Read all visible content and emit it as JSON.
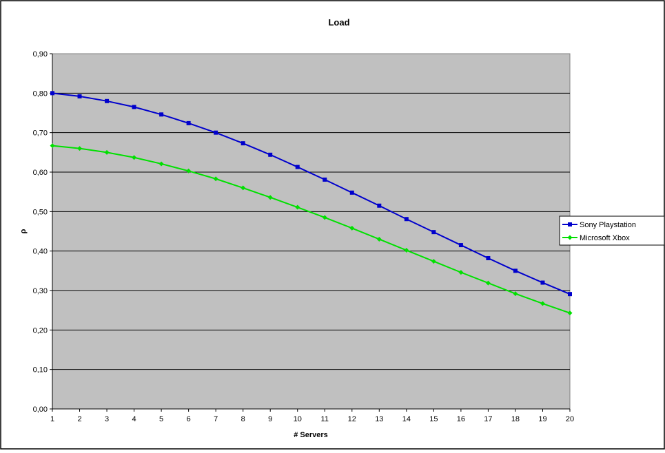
{
  "chart_data": {
    "type": "line",
    "title": "Load",
    "xlabel": "# Servers",
    "ylabel": "ρ",
    "x": [
      1,
      2,
      3,
      4,
      5,
      6,
      7,
      8,
      9,
      10,
      11,
      12,
      13,
      14,
      15,
      16,
      17,
      18,
      19,
      20
    ],
    "x_tick_labels": [
      "1",
      "2",
      "3",
      "4",
      "5",
      "6",
      "7",
      "8",
      "9",
      "10",
      "11",
      "12",
      "13",
      "14",
      "15",
      "16",
      "17",
      "18",
      "19",
      "20"
    ],
    "ylim": [
      0,
      0.9
    ],
    "y_ticks": [
      0,
      0.1,
      0.2,
      0.3,
      0.4,
      0.5,
      0.6,
      0.7,
      0.8,
      0.9
    ],
    "y_tick_labels": [
      "0,00",
      "0,10",
      "0,20",
      "0,30",
      "0,40",
      "0,50",
      "0,60",
      "0,70",
      "0,80",
      "0,90"
    ],
    "grid": "horizontal",
    "plot_background": "#c0c0c0",
    "legend_position": "right",
    "series": [
      {
        "name": "Sony Playstation",
        "color": "#0000cc",
        "marker": "square",
        "values": [
          0.8,
          0.792,
          0.78,
          0.765,
          0.746,
          0.724,
          0.7,
          0.673,
          0.644,
          0.613,
          0.581,
          0.548,
          0.515,
          0.481,
          0.448,
          0.415,
          0.382,
          0.35,
          0.32,
          0.291
        ]
      },
      {
        "name": "Microsoft Xbox",
        "color": "#00e000",
        "marker": "diamond",
        "values": [
          0.667,
          0.66,
          0.65,
          0.637,
          0.621,
          0.603,
          0.583,
          0.56,
          0.536,
          0.511,
          0.485,
          0.458,
          0.43,
          0.402,
          0.374,
          0.346,
          0.319,
          0.292,
          0.267,
          0.243
        ]
      }
    ]
  }
}
